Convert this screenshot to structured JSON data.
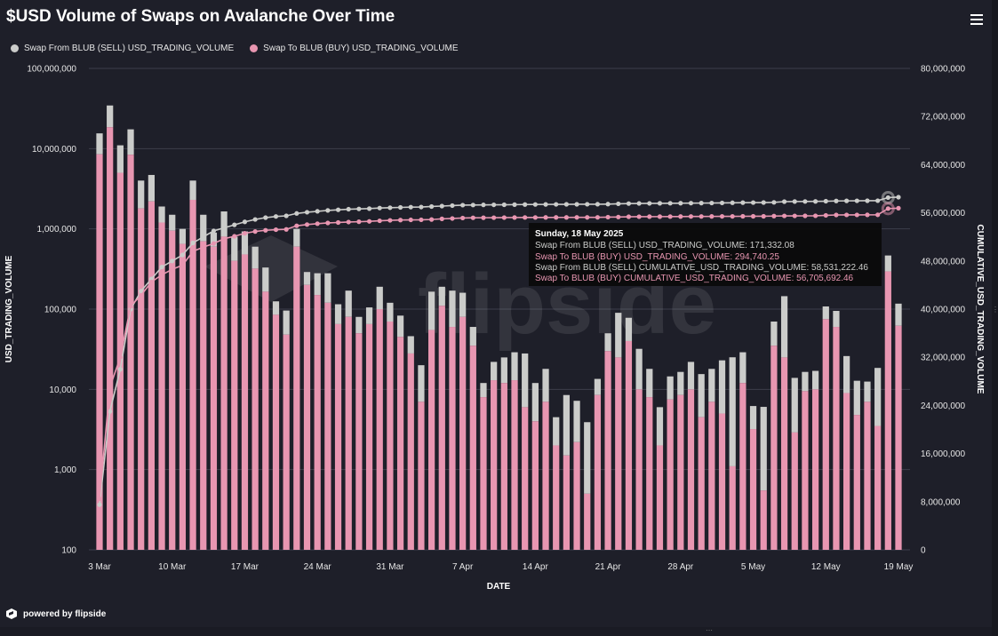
{
  "title": "$USD Volume of Swaps on Avalanche Over Time",
  "legend": {
    "series_sell": "Swap From BLUB (SELL) USD_TRADING_VOLUME",
    "series_buy": "Swap To BLUB (BUY) USD_TRADING_VOLUME"
  },
  "colors": {
    "sell": "#cbccca",
    "buy": "#e896b1",
    "background": "#1e1f29",
    "grid": "#3c3e4a"
  },
  "watermark": "flipside",
  "footer": {
    "text": "powered by flipside"
  },
  "tooltip": {
    "date": "Sunday, 18 May 2025",
    "line1": "Swap From BLUB (SELL) USD_TRADING_VOLUME: 171,332.08",
    "line2": "Swap To BLUB (BUY) USD_TRADING_VOLUME: 294,740.25",
    "line3": "Swap From BLUB (SELL) CUMULATIVE_USD_TRADING_VOLUME: 58,531,222.46",
    "line4": "Swap To BLUB (BUY) CUMULATIVE_USD_TRADING_VOLUME: 56,705,692.46"
  },
  "chart_data": {
    "type": "bar",
    "stacked": true,
    "xlabel": "DATE",
    "ylabel": "USD_TRADING_VOLUME",
    "y2label": "CUMULATIVE_USD_TRADING_VOLUME",
    "yscale": "log",
    "ylim": [
      100,
      100000000
    ],
    "y2lim": [
      0,
      80000000
    ],
    "yticks": [
      "100,000,000",
      "10,000,000",
      "1,000,000",
      "100,000",
      "10,000",
      "1,000",
      "100"
    ],
    "y2ticks": [
      "80,000,000",
      "72,000,000",
      "64,000,000",
      "56,000,000",
      "48,000,000",
      "40,000,000",
      "32,000,000",
      "24,000,000",
      "16,000,000",
      "8,000,000",
      "0"
    ],
    "xticks": [
      "3 Mar",
      "10 Mar",
      "17 Mar",
      "24 Mar",
      "31 Mar",
      "7 Apr",
      "14 Apr",
      "21 Apr",
      "28 Apr",
      "5 May",
      "12 May",
      "19 May"
    ],
    "categories": [
      "3 Mar",
      "4 Mar",
      "5 Mar",
      "6 Mar",
      "7 Mar",
      "8 Mar",
      "9 Mar",
      "10 Mar",
      "11 Mar",
      "12 Mar",
      "13 Mar",
      "14 Mar",
      "15 Mar",
      "16 Mar",
      "17 Mar",
      "18 Mar",
      "19 Mar",
      "20 Mar",
      "21 Mar",
      "22 Mar",
      "23 Mar",
      "24 Mar",
      "25 Mar",
      "26 Mar",
      "27 Mar",
      "28 Mar",
      "29 Mar",
      "30 Mar",
      "31 Mar",
      "1 Apr",
      "2 Apr",
      "3 Apr",
      "4 Apr",
      "5 Apr",
      "6 Apr",
      "7 Apr",
      "8 Apr",
      "9 Apr",
      "10 Apr",
      "11 Apr",
      "12 Apr",
      "13 Apr",
      "14 Apr",
      "15 Apr",
      "16 Apr",
      "17 Apr",
      "18 Apr",
      "19 Apr",
      "20 Apr",
      "21 Apr",
      "22 Apr",
      "23 Apr",
      "24 Apr",
      "25 Apr",
      "26 Apr",
      "27 Apr",
      "28 Apr",
      "29 Apr",
      "30 Apr",
      "1 May",
      "2 May",
      "3 May",
      "4 May",
      "5 May",
      "6 May",
      "7 May",
      "8 May",
      "9 May",
      "10 May",
      "11 May",
      "12 May",
      "13 May",
      "14 May",
      "15 May",
      "16 May",
      "17 May",
      "18 May",
      "19 May"
    ],
    "series": [
      {
        "name": "Swap To BLUB (BUY) USD_TRADING_VOLUME",
        "color": "#e896b1",
        "values": [
          8500000,
          18500000,
          5000000,
          8400000,
          1800000,
          2200000,
          1200000,
          950000,
          650000,
          2300000,
          700000,
          600000,
          800000,
          400000,
          480000,
          320000,
          165000,
          85000,
          48000,
          600000,
          200000,
          150000,
          120000,
          65000,
          80000,
          50000,
          65000,
          100000,
          70000,
          45000,
          28000,
          7000,
          55000,
          110000,
          60000,
          80000,
          35000,
          8000,
          13000,
          12000,
          13000,
          6000,
          4000,
          7000,
          2000,
          1500,
          2200,
          500,
          8500,
          30000,
          25000,
          40000,
          10000,
          8000,
          2000,
          7500,
          8500,
          10000,
          4500,
          7000,
          5000,
          1100,
          12000,
          3200,
          550,
          35000,
          25000,
          2900,
          9500,
          10000,
          75000,
          60000,
          9000,
          4800,
          7000,
          3500,
          295000,
          62000
        ]
      },
      {
        "name": "Swap From BLUB (SELL) USD_TRADING_VOLUME",
        "color": "#cbccca",
        "values": [
          7000000,
          16000000,
          6000000,
          9000000,
          2200000,
          2500000,
          700000,
          550000,
          350000,
          1700000,
          800000,
          300000,
          850000,
          400000,
          450000,
          280000,
          165000,
          40000,
          48000,
          400000,
          90000,
          130000,
          160000,
          50000,
          90000,
          30000,
          40000,
          90000,
          50000,
          38000,
          18000,
          13000,
          110000,
          80000,
          110000,
          80000,
          25000,
          4000,
          9000,
          13000,
          16000,
          22000,
          8000,
          11000,
          2500,
          7000,
          5000,
          3400,
          5000,
          20000,
          65000,
          38000,
          22000,
          10000,
          4000,
          7000,
          8000,
          12000,
          11000,
          11000,
          18000,
          24000,
          17000,
          3000,
          5500,
          35000,
          120000,
          11000,
          7000,
          7000,
          33000,
          35000,
          17000,
          8000,
          5500,
          15000,
          171000,
          55000
        ]
      },
      {
        "name": "Swap From BLUB (SELL) CUMULATIVE_USD_TRADING_VOLUME",
        "color": "#cbccca",
        "axis": "right",
        "values": [
          7500000,
          23000000,
          30000000,
          40000000,
          43000000,
          45000000,
          47000000,
          48000000,
          49000000,
          51000000,
          52000000,
          53000000,
          53500000,
          54000000,
          54500000,
          54900000,
          55200000,
          55400000,
          55500000,
          55900000,
          56100000,
          56250000,
          56400000,
          56500000,
          56600000,
          56650000,
          56700000,
          56800000,
          56850000,
          56900000,
          56950000,
          56960000,
          57050000,
          57120000,
          57200000,
          57280000,
          57300000,
          57320000,
          57330000,
          57340000,
          57360000,
          57380000,
          57390000,
          57400000,
          57410000,
          57415000,
          57420000,
          57425000,
          57430000,
          57450000,
          57500000,
          57540000,
          57560000,
          57570000,
          57580000,
          57590000,
          57600000,
          57610000,
          57620000,
          57630000,
          57650000,
          57670000,
          57690000,
          57700000,
          57710000,
          57740000,
          57860000,
          57880000,
          57890000,
          57900000,
          57930000,
          57970000,
          57990000,
          58000000,
          58010000,
          58020000,
          58530000,
          58600000
        ]
      },
      {
        "name": "Swap To BLUB (BUY) CUMULATIVE_USD_TRADING_VOLUME",
        "color": "#e896b1",
        "axis": "right",
        "values": [
          8500000,
          27000000,
          32000000,
          40500000,
          42300000,
          44500000,
          45700000,
          46600000,
          47300000,
          49600000,
          50300000,
          50900000,
          51700000,
          52100000,
          52600000,
          52900000,
          53100000,
          53200000,
          53250000,
          53850000,
          54050000,
          54200000,
          54320000,
          54390000,
          54470000,
          54520000,
          54580000,
          54680000,
          54750000,
          54800000,
          54830000,
          54840000,
          54890000,
          55000000,
          55060000,
          55140000,
          55175000,
          55183000,
          55196000,
          55208000,
          55221000,
          55227000,
          55231000,
          55238000,
          55240000,
          55241500,
          55243700,
          55244200,
          55252700,
          55282700,
          55307700,
          55347700,
          55357700,
          55365700,
          55367700,
          55375200,
          55383700,
          55393700,
          55398200,
          55405200,
          55410200,
          55411300,
          55423300,
          55426500,
          55427000,
          55462000,
          55487000,
          55490000,
          55499500,
          55509500,
          55584500,
          55644500,
          55653500,
          55658300,
          55665300,
          55668800,
          56705700,
          56770000
        ]
      }
    ]
  }
}
